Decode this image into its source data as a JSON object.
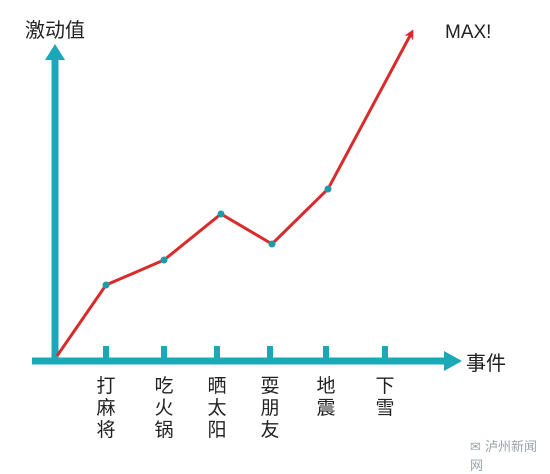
{
  "chart_data": {
    "type": "line",
    "ylabel": "激动值",
    "xlabel": "事件",
    "categories": [
      "打麻将",
      "吃火锅",
      "晒太阳",
      "耍朋友",
      "地震",
      "下雪"
    ],
    "values": [
      3,
      4,
      6,
      4.8,
      7,
      13.5
    ],
    "origin_value": 0,
    "ylim": [
      0,
      14
    ],
    "end_annotation": "MAX!",
    "grid": false,
    "legend": "none",
    "colors": {
      "line": "#d92b2b",
      "axis": "#1ba8b8",
      "point": "#1f9aa8"
    }
  },
  "watermark": {
    "label": "泸州新闻网",
    "icon": "wechat-icon"
  }
}
